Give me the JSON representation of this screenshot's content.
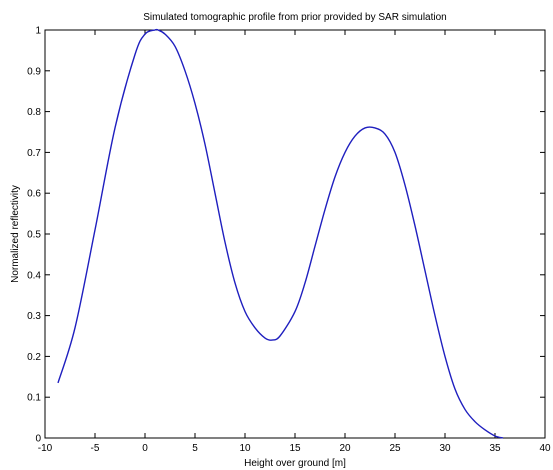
{
  "chart_data": {
    "type": "line",
    "title": "Simulated tomographic profile from prior provided by SAR simulation",
    "xlabel": "Height over ground  [m]",
    "ylabel": "Normalized reflectivity",
    "xlim": [
      -10,
      40
    ],
    "ylim": [
      0,
      1
    ],
    "xticks": [
      -10,
      -5,
      0,
      5,
      10,
      15,
      20,
      25,
      30,
      35,
      40
    ],
    "yticks": [
      0,
      0.1,
      0.2,
      0.3,
      0.4,
      0.5,
      0.6,
      0.7,
      0.8,
      0.9,
      1
    ],
    "grid": false,
    "legend": "none",
    "series": [
      {
        "color": "#1f1fbf",
        "x": [
          -8.7,
          -7,
          -5,
          -3,
          -1,
          0,
          1,
          1.3,
          2,
          3,
          4,
          5,
          6,
          7,
          8,
          9,
          10,
          11,
          12,
          12.7,
          13.5,
          15,
          16,
          17,
          18,
          19,
          20,
          21,
          22,
          23,
          24,
          25,
          26,
          27,
          28,
          29,
          30,
          31,
          32,
          33,
          34,
          35,
          35.8
        ],
        "y": [
          0.135,
          0.27,
          0.51,
          0.76,
          0.94,
          0.99,
          1.0,
          1.0,
          0.99,
          0.96,
          0.9,
          0.82,
          0.72,
          0.6,
          0.48,
          0.38,
          0.31,
          0.27,
          0.245,
          0.24,
          0.25,
          0.31,
          0.38,
          0.47,
          0.56,
          0.64,
          0.7,
          0.74,
          0.76,
          0.76,
          0.745,
          0.7,
          0.62,
          0.52,
          0.41,
          0.3,
          0.2,
          0.12,
          0.07,
          0.04,
          0.02,
          0.005,
          0.0
        ]
      }
    ]
  }
}
